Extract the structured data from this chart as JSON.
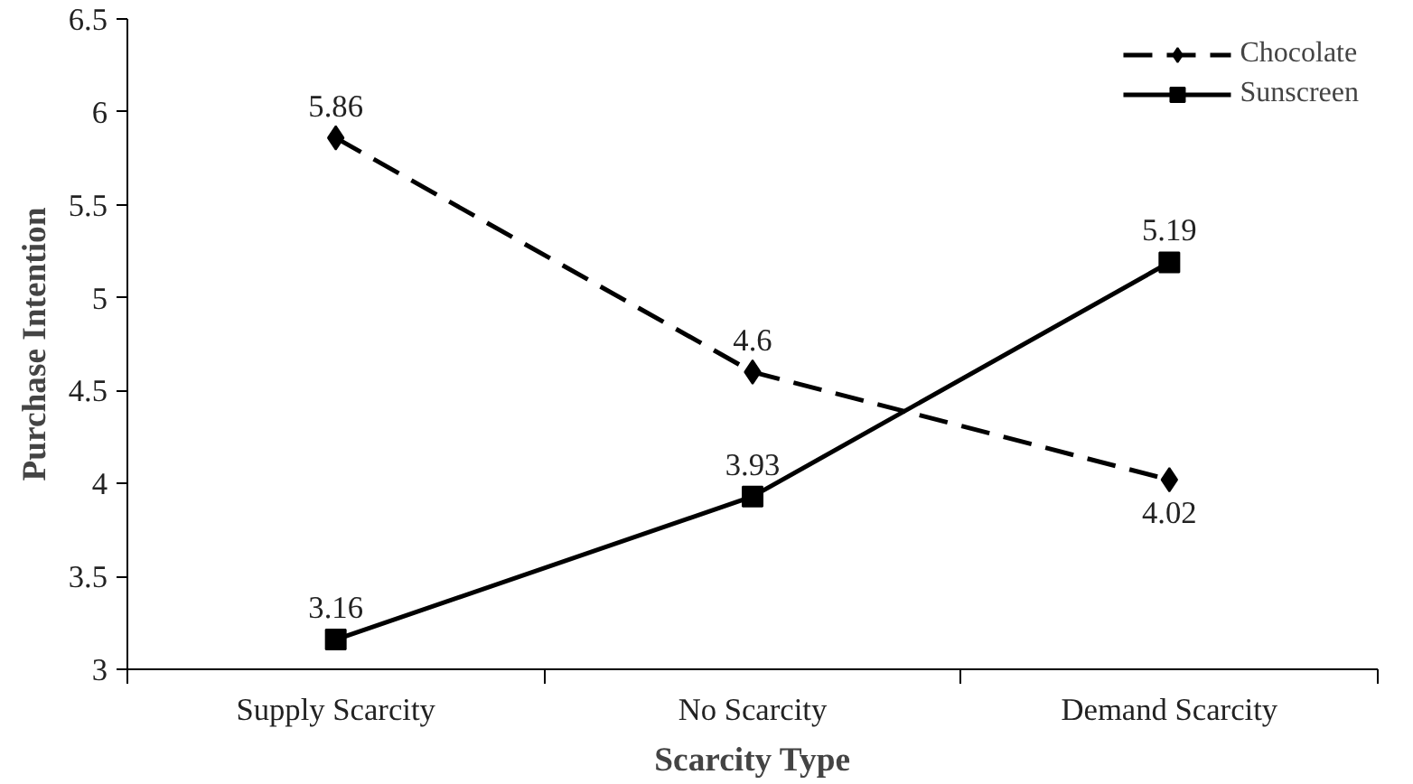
{
  "chart_data": {
    "type": "line",
    "xlabel": "Scarcity Type",
    "ylabel": "Purchase Intention",
    "categories": [
      "Supply Scarcity",
      "No Scarcity",
      "Demand Scarcity"
    ],
    "series": [
      {
        "name": "Chocolate",
        "color": "#000000",
        "values": [
          5.86,
          4.6,
          4.02
        ],
        "marker": "diamond",
        "line_style": "dashed"
      },
      {
        "name": "Sunscreen",
        "color": "#000000",
        "values": [
          3.16,
          3.93,
          5.19
        ],
        "marker": "square",
        "line_style": "solid"
      }
    ],
    "ylim": [
      3,
      6.5
    ],
    "yticks": [
      3,
      3.5,
      4,
      4.5,
      5,
      5.5,
      6,
      6.5
    ],
    "data_labels": true,
    "legend": "top right",
    "grid": false
  }
}
